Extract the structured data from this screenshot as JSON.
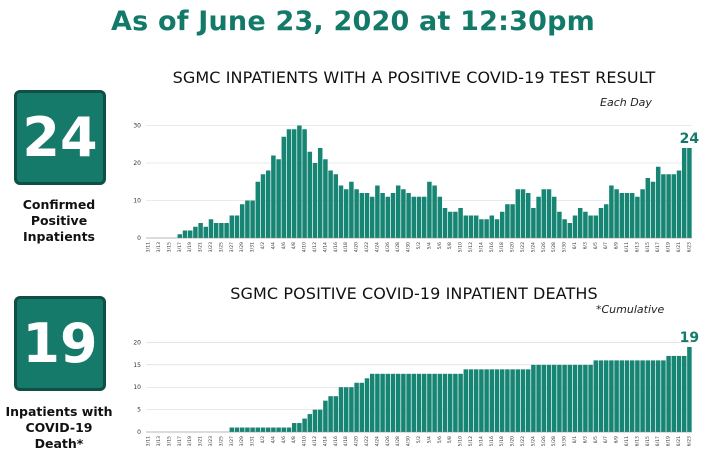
{
  "header": {
    "title": "As of June 23, 2020 at 12:30pm"
  },
  "stats": [
    {
      "value": "24",
      "label_lines": [
        "Confirmed",
        "Positive",
        "Inpatients"
      ]
    },
    {
      "value": "19",
      "label_lines": [
        "Inpatients with",
        "COVID-19",
        "Death*"
      ]
    }
  ],
  "colors": {
    "accent": "#137a6a",
    "bar": "#178573",
    "box": "#167a6b"
  },
  "chart_data": [
    {
      "type": "bar",
      "title": "SGMC INPATIENTS WITH A POSITIVE COVID-19 TEST RESULT",
      "note": "Each Day",
      "end_label": "24",
      "ylim": [
        0,
        32
      ],
      "yticks": [
        0,
        10,
        20,
        30
      ],
      "grid": true,
      "categories": [
        "3/11",
        "3/12",
        "3/13",
        "3/14",
        "3/15",
        "3/16",
        "3/17",
        "3/18",
        "3/19",
        "3/20",
        "3/21",
        "3/22",
        "3/23",
        "3/24",
        "3/25",
        "3/26",
        "3/27",
        "3/28",
        "3/29",
        "3/30",
        "3/31",
        "4/1",
        "4/2",
        "4/3",
        "4/4",
        "4/5",
        "4/6",
        "4/7",
        "4/8",
        "4/9",
        "4/10",
        "4/11",
        "4/12",
        "4/13",
        "4/14",
        "4/15",
        "4/16",
        "4/17",
        "4/18",
        "4/19",
        "4/20",
        "4/21",
        "4/22",
        "4/23",
        "4/24",
        "4/25",
        "4/26",
        "4/27",
        "4/28",
        "4/29",
        "4/30",
        "5/1",
        "5/2",
        "5/3",
        "5/4",
        "5/5",
        "5/6",
        "5/7",
        "5/8",
        "5/9",
        "5/10",
        "5/11",
        "5/12",
        "5/13",
        "5/14",
        "5/15",
        "5/16",
        "5/17",
        "5/18",
        "5/19",
        "5/20",
        "5/21",
        "5/22",
        "5/23",
        "5/24",
        "5/25",
        "5/26",
        "5/27",
        "5/28",
        "5/29",
        "5/30",
        "5/31",
        "6/1",
        "6/2",
        "6/3",
        "6/4",
        "6/5",
        "6/6",
        "6/7",
        "6/8",
        "6/9",
        "6/10",
        "6/11",
        "6/12",
        "6/13",
        "6/14",
        "6/15",
        "6/16",
        "6/17",
        "6/18",
        "6/19",
        "6/20",
        "6/21",
        "6/22",
        "6/23"
      ],
      "tick_labels": [
        "3/11",
        "3/13",
        "3/15",
        "3/17",
        "3/19",
        "3/21",
        "3/23",
        "3/25",
        "3/27",
        "3/29",
        "3/31",
        "4/2",
        "4/4",
        "4/6",
        "4/8",
        "4/10",
        "4/12",
        "4/14",
        "4/16",
        "4/18",
        "4/20",
        "4/22",
        "4/24",
        "4/26",
        "4/28",
        "4/30",
        "5/2",
        "5/4",
        "5/6",
        "5/8",
        "5/10",
        "5/12",
        "5/14",
        "5/16",
        "5/18",
        "5/20",
        "5/22",
        "5/24",
        "5/26",
        "5/28",
        "5/30",
        "6/1",
        "6/3",
        "6/5",
        "6/7",
        "6/9",
        "6/11",
        "6/13",
        "6/15",
        "6/17",
        "6/19",
        "6/21",
        "6/23"
      ],
      "values": [
        0,
        0,
        0,
        0,
        0,
        0,
        1,
        2,
        2,
        3,
        4,
        3,
        5,
        4,
        4,
        4,
        6,
        6,
        9,
        10,
        10,
        15,
        17,
        18,
        22,
        21,
        27,
        29,
        29,
        30,
        29,
        23,
        20,
        24,
        21,
        18,
        17,
        14,
        13,
        15,
        13,
        12,
        12,
        11,
        14,
        12,
        11,
        12,
        14,
        13,
        12,
        11,
        11,
        11,
        15,
        14,
        11,
        8,
        7,
        7,
        8,
        6,
        6,
        6,
        5,
        5,
        6,
        5,
        7,
        9,
        9,
        13,
        13,
        12,
        8,
        11,
        13,
        13,
        11,
        7,
        5,
        4,
        6,
        8,
        7,
        6,
        6,
        8,
        9,
        14,
        13,
        12,
        12,
        12,
        11,
        13,
        16,
        15,
        19,
        17,
        17,
        17,
        18,
        24,
        24
      ]
    },
    {
      "type": "bar",
      "title": "SGMC POSITIVE COVID-19 INPATIENT DEATHS",
      "note": "*Cumulative",
      "end_label": "19",
      "ylim": [
        0,
        21
      ],
      "yticks": [
        0,
        5,
        10,
        15,
        20
      ],
      "grid": true,
      "categories": [
        "3/11",
        "3/12",
        "3/13",
        "3/14",
        "3/15",
        "3/16",
        "3/17",
        "3/18",
        "3/19",
        "3/20",
        "3/21",
        "3/22",
        "3/23",
        "3/24",
        "3/25",
        "3/26",
        "3/27",
        "3/28",
        "3/29",
        "3/30",
        "3/31",
        "4/1",
        "4/2",
        "4/3",
        "4/4",
        "4/5",
        "4/6",
        "4/7",
        "4/8",
        "4/9",
        "4/10",
        "4/11",
        "4/12",
        "4/13",
        "4/14",
        "4/15",
        "4/16",
        "4/17",
        "4/18",
        "4/19",
        "4/20",
        "4/21",
        "4/22",
        "4/23",
        "4/24",
        "4/25",
        "4/26",
        "4/27",
        "4/28",
        "4/29",
        "4/30",
        "5/1",
        "5/2",
        "5/3",
        "5/4",
        "5/5",
        "5/6",
        "5/7",
        "5/8",
        "5/9",
        "5/10",
        "5/11",
        "5/12",
        "5/13",
        "5/14",
        "5/15",
        "5/16",
        "5/17",
        "5/18",
        "5/19",
        "5/20",
        "5/21",
        "5/22",
        "5/23",
        "5/24",
        "5/25",
        "5/26",
        "5/27",
        "5/28",
        "5/29",
        "5/30",
        "5/31",
        "6/1",
        "6/2",
        "6/3",
        "6/4",
        "6/5",
        "6/6",
        "6/7",
        "6/8",
        "6/9",
        "6/10",
        "6/11",
        "6/12",
        "6/13",
        "6/14",
        "6/15",
        "6/16",
        "6/17",
        "6/18",
        "6/19",
        "6/20",
        "6/21",
        "6/22",
        "6/23"
      ],
      "tick_labels": [
        "3/11",
        "3/13",
        "3/15",
        "3/17",
        "3/19",
        "3/21",
        "3/23",
        "3/25",
        "3/27",
        "3/29",
        "3/31",
        "4/2",
        "4/4",
        "4/6",
        "4/8",
        "4/10",
        "4/12",
        "4/14",
        "4/16",
        "4/18",
        "4/20",
        "4/22",
        "4/24",
        "4/26",
        "4/28",
        "4/30",
        "5/2",
        "5/4",
        "5/6",
        "5/8",
        "5/10",
        "5/12",
        "5/14",
        "5/16",
        "5/18",
        "5/20",
        "5/22",
        "5/24",
        "5/26",
        "5/28",
        "5/30",
        "6/1",
        "6/3",
        "6/5",
        "6/7",
        "6/9",
        "6/11",
        "6/13",
        "6/15",
        "6/17",
        "6/19",
        "6/21",
        "6/23"
      ],
      "values": [
        0,
        0,
        0,
        0,
        0,
        0,
        0,
        0,
        0,
        0,
        0,
        0,
        0,
        0,
        0,
        0,
        1,
        1,
        1,
        1,
        1,
        1,
        1,
        1,
        1,
        1,
        1,
        1,
        2,
        2,
        3,
        4,
        5,
        5,
        7,
        8,
        8,
        10,
        10,
        10,
        11,
        11,
        12,
        13,
        13,
        13,
        13,
        13,
        13,
        13,
        13,
        13,
        13,
        13,
        13,
        13,
        13,
        13,
        13,
        13,
        13,
        14,
        14,
        14,
        14,
        14,
        14,
        14,
        14,
        14,
        14,
        14,
        14,
        14,
        15,
        15,
        15,
        15,
        15,
        15,
        15,
        15,
        15,
        15,
        15,
        15,
        16,
        16,
        16,
        16,
        16,
        16,
        16,
        16,
        16,
        16,
        16,
        16,
        16,
        16,
        17,
        17,
        17,
        17,
        19
      ]
    }
  ]
}
